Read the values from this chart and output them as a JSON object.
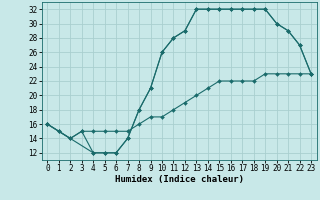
{
  "xlabel": "Humidex (Indice chaleur)",
  "ylabel": "",
  "bg_color": "#c8e8e8",
  "grid_color": "#aacfcf",
  "line_color": "#1a6b6b",
  "xlim": [
    -0.5,
    23.5
  ],
  "ylim": [
    11,
    33
  ],
  "yticks": [
    12,
    14,
    16,
    18,
    20,
    22,
    24,
    26,
    28,
    30,
    32
  ],
  "xticks": [
    0,
    1,
    2,
    3,
    4,
    5,
    6,
    7,
    8,
    9,
    10,
    11,
    12,
    13,
    14,
    15,
    16,
    17,
    18,
    19,
    20,
    21,
    22,
    23
  ],
  "line1_x": [
    0,
    1,
    2,
    3,
    4,
    5,
    6,
    7,
    8,
    9,
    10,
    11,
    12,
    13,
    14,
    15,
    16,
    17,
    18,
    19,
    20,
    21,
    22,
    23
  ],
  "line1_y": [
    16,
    15,
    14,
    15,
    12,
    12,
    12,
    14,
    18,
    21,
    26,
    28,
    29,
    32,
    32,
    32,
    32,
    32,
    32,
    32,
    30,
    29,
    27,
    23
  ],
  "line2_x": [
    0,
    4,
    5,
    6,
    7,
    8,
    9,
    10,
    11,
    12,
    13,
    14,
    15,
    16,
    17,
    18,
    19,
    20,
    21,
    22,
    23
  ],
  "line2_y": [
    16,
    12,
    12,
    12,
    14,
    18,
    21,
    26,
    28,
    29,
    32,
    32,
    32,
    32,
    32,
    32,
    32,
    30,
    29,
    27,
    23
  ],
  "line3_x": [
    0,
    1,
    2,
    3,
    4,
    5,
    6,
    7,
    8,
    9,
    10,
    11,
    12,
    13,
    14,
    15,
    16,
    17,
    18,
    19,
    20,
    21,
    22,
    23
  ],
  "line3_y": [
    16,
    15,
    14,
    15,
    15,
    15,
    15,
    15,
    16,
    17,
    17,
    18,
    19,
    20,
    21,
    22,
    22,
    22,
    22,
    23,
    23,
    23,
    23,
    23
  ],
  "tick_fontsize": 5.5,
  "xlabel_fontsize": 6.5,
  "marker_size": 2.0,
  "line_width": 0.8
}
